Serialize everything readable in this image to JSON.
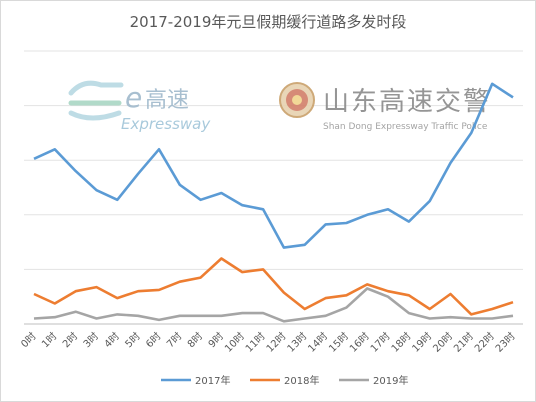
{
  "watermarks": {
    "expressway": {
      "logo_text": "e",
      "cn": "高速",
      "en": "Expressway"
    },
    "police": {
      "cn": "山东高速交警",
      "en": "Shan Dong Expressway Traffic Police"
    }
  },
  "chart_data": {
    "type": "line",
    "title": "2017-2019年元旦假期缓行道路多发时段",
    "xlabel": "",
    "ylabel": "",
    "categories": [
      "0时",
      "1时",
      "2时",
      "3时",
      "4时",
      "5时",
      "6时",
      "7时",
      "8时",
      "9时",
      "10时",
      "11时",
      "12时",
      "13时",
      "14时",
      "15时",
      "16时",
      "17时",
      "18时",
      "19时",
      "20时",
      "21时",
      "22时",
      "23时"
    ],
    "ylim": [
      0,
      100
    ],
    "grid": true,
    "legend": "bottom",
    "series": [
      {
        "name": "2017年",
        "color": "#5b9bd5",
        "values": [
          60.5,
          64,
          56,
          49,
          45.5,
          55,
          64,
          51,
          45.5,
          48,
          43.5,
          42,
          28,
          29,
          36.5,
          37,
          40,
          42,
          37.5,
          45,
          59,
          70,
          88,
          83
        ]
      },
      {
        "name": "2018年",
        "color": "#ed7d31",
        "values": [
          11,
          7.5,
          12,
          13.5,
          9.5,
          12,
          12.5,
          15.5,
          17,
          24,
          19,
          20,
          11.5,
          5.5,
          9.5,
          10.5,
          14.5,
          12,
          10.5,
          5.5,
          11,
          3.5,
          5.5,
          8
        ]
      },
      {
        "name": "2019年",
        "color": "#a5a5a5",
        "values": [
          2,
          2.5,
          4.5,
          2,
          3.5,
          3,
          1.5,
          3,
          3,
          3,
          4,
          4,
          1,
          2,
          3,
          6,
          13,
          10,
          4,
          2,
          2.5,
          2,
          2,
          3
        ]
      }
    ]
  }
}
